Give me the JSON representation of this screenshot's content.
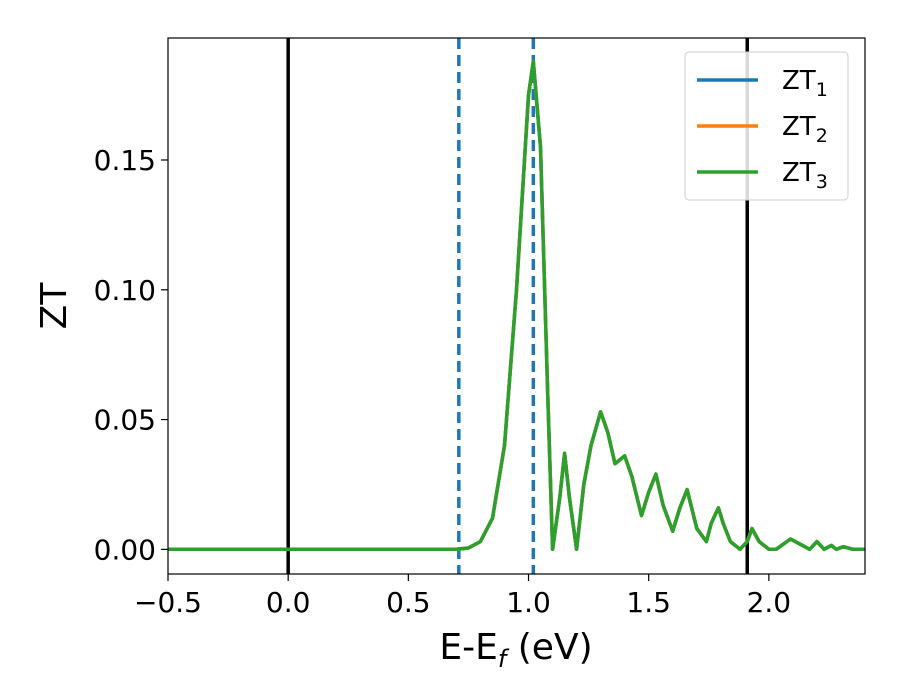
{
  "chart_data": {
    "type": "line",
    "xlabel_main": "E-E",
    "xlabel_sub": "f",
    "xlabel_unit": " (eV)",
    "ylabel": "ZT",
    "xlim": [
      -0.5,
      2.4
    ],
    "ylim": [
      -0.0095,
      0.197
    ],
    "xticks": [
      -0.5,
      0.0,
      0.5,
      1.0,
      1.5,
      2.0
    ],
    "xtick_labels": [
      "−0.5",
      "0.0",
      "0.5",
      "1.0",
      "1.5",
      "2.0"
    ],
    "yticks": [
      0.0,
      0.05,
      0.1,
      0.15
    ],
    "ytick_labels": [
      "0.00",
      "0.05",
      "0.10",
      "0.15"
    ],
    "grid": false,
    "legend_position": "top-right",
    "colors": {
      "series1": "#1f77b4",
      "series2": "#ff7f0e",
      "series3": "#2ca02c",
      "vline": "#000000"
    },
    "vlines_solid": [
      0.0,
      1.91
    ],
    "vlines_dashed": [
      0.71,
      1.02
    ],
    "series": [
      {
        "name_main": "ZT",
        "name_sub": "1",
        "color": "#1f77b4",
        "x": [
          -0.5,
          0.7,
          0.75,
          0.8,
          0.85,
          0.9,
          0.95,
          1.0,
          1.02,
          1.05,
          1.08,
          1.1,
          1.13,
          1.15,
          1.17,
          1.2,
          1.23,
          1.26,
          1.3,
          1.33,
          1.36,
          1.4,
          1.43,
          1.47,
          1.5,
          1.53,
          1.56,
          1.6,
          1.63,
          1.66,
          1.7,
          1.74,
          1.76,
          1.79,
          1.81,
          1.84,
          1.88,
          1.91,
          1.93,
          1.96,
          2.0,
          2.03,
          2.06,
          2.09,
          2.13,
          2.17,
          2.2,
          2.23,
          2.26,
          2.28,
          2.31,
          2.35,
          2.4
        ],
        "y": [
          0.0,
          0.0,
          0.0005,
          0.003,
          0.012,
          0.04,
          0.1,
          0.175,
          0.188,
          0.155,
          0.06,
          0.0,
          0.02,
          0.037,
          0.02,
          0.0,
          0.025,
          0.04,
          0.053,
          0.045,
          0.033,
          0.036,
          0.028,
          0.013,
          0.022,
          0.029,
          0.017,
          0.007,
          0.016,
          0.023,
          0.008,
          0.003,
          0.01,
          0.016,
          0.01,
          0.003,
          0.0,
          0.003,
          0.008,
          0.003,
          0.0,
          0.0,
          0.002,
          0.004,
          0.002,
          0.0,
          0.003,
          0.0,
          0.0015,
          0.0,
          0.001,
          0.0,
          0.0
        ]
      },
      {
        "name_main": "ZT",
        "name_sub": "2",
        "color": "#ff7f0e",
        "x": [
          -0.5,
          0.7,
          0.75,
          0.8,
          0.85,
          0.9,
          0.95,
          1.0,
          1.02,
          1.05,
          1.08,
          1.1,
          1.13,
          1.15,
          1.17,
          1.2,
          1.23,
          1.26,
          1.3,
          1.33,
          1.36,
          1.4,
          1.43,
          1.47,
          1.5,
          1.53,
          1.56,
          1.6,
          1.63,
          1.66,
          1.7,
          1.74,
          1.76,
          1.79,
          1.81,
          1.84,
          1.88,
          1.91,
          1.93,
          1.96,
          2.0,
          2.03,
          2.06,
          2.09,
          2.13,
          2.17,
          2.2,
          2.23,
          2.26,
          2.28,
          2.31,
          2.35,
          2.4
        ],
        "y": [
          0.0,
          0.0,
          0.0005,
          0.003,
          0.012,
          0.04,
          0.1,
          0.175,
          0.188,
          0.155,
          0.06,
          0.0,
          0.02,
          0.037,
          0.02,
          0.0,
          0.025,
          0.04,
          0.053,
          0.045,
          0.033,
          0.036,
          0.028,
          0.013,
          0.022,
          0.029,
          0.017,
          0.007,
          0.016,
          0.023,
          0.008,
          0.003,
          0.01,
          0.016,
          0.01,
          0.003,
          0.0,
          0.003,
          0.008,
          0.003,
          0.0,
          0.0,
          0.002,
          0.004,
          0.002,
          0.0,
          0.003,
          0.0,
          0.0015,
          0.0,
          0.001,
          0.0,
          0.0
        ]
      },
      {
        "name_main": "ZT",
        "name_sub": "3",
        "color": "#2ca02c",
        "x": [
          -0.5,
          0.7,
          0.75,
          0.8,
          0.85,
          0.9,
          0.95,
          1.0,
          1.02,
          1.05,
          1.08,
          1.1,
          1.13,
          1.15,
          1.17,
          1.2,
          1.23,
          1.26,
          1.3,
          1.33,
          1.36,
          1.4,
          1.43,
          1.47,
          1.5,
          1.53,
          1.56,
          1.6,
          1.63,
          1.66,
          1.7,
          1.74,
          1.76,
          1.79,
          1.81,
          1.84,
          1.88,
          1.91,
          1.93,
          1.96,
          2.0,
          2.03,
          2.06,
          2.09,
          2.13,
          2.17,
          2.2,
          2.23,
          2.26,
          2.28,
          2.31,
          2.35,
          2.4
        ],
        "y": [
          0.0,
          0.0,
          0.0005,
          0.003,
          0.012,
          0.04,
          0.1,
          0.175,
          0.188,
          0.155,
          0.06,
          0.0,
          0.02,
          0.037,
          0.02,
          0.0,
          0.025,
          0.04,
          0.053,
          0.045,
          0.033,
          0.036,
          0.028,
          0.013,
          0.022,
          0.029,
          0.017,
          0.007,
          0.016,
          0.023,
          0.008,
          0.003,
          0.01,
          0.016,
          0.01,
          0.003,
          0.0,
          0.003,
          0.008,
          0.003,
          0.0,
          0.0,
          0.002,
          0.004,
          0.002,
          0.0,
          0.003,
          0.0,
          0.0015,
          0.0,
          0.001,
          0.0,
          0.0
        ]
      }
    ]
  }
}
